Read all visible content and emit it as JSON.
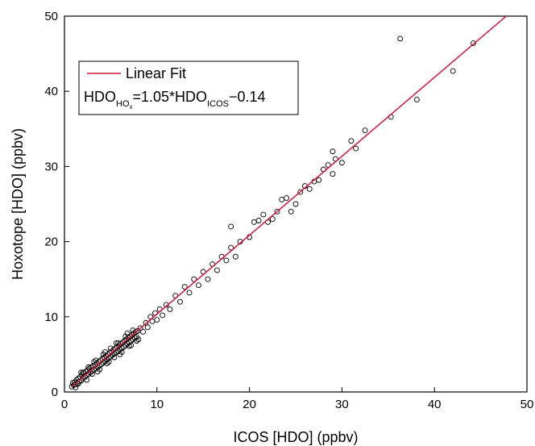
{
  "chart_data": {
    "type": "scatter",
    "xlabel": "ICOS [HDO] (ppbv)",
    "ylabel": "Hoxotope [HDO] (ppbv)",
    "xlim": [
      0,
      50
    ],
    "ylim": [
      0,
      50
    ],
    "xticks": [
      0,
      10,
      20,
      30,
      40,
      50
    ],
    "yticks": [
      0,
      10,
      20,
      30,
      40,
      50
    ],
    "legend": {
      "placement": "top-left",
      "entry": "Linear Fit",
      "equation": {
        "lhs": "HDO",
        "lhs_sub": "HO",
        "lhs_subsub": "x",
        "middle": "=1.05*HDO",
        "rhs_sub": "ICOS",
        "rhs": "−0.14"
      }
    },
    "fit": {
      "name": "Linear Fit",
      "slope": 1.05,
      "intercept": -0.14,
      "x_range": [
        0.8,
        47.7
      ],
      "color": "#d6163c"
    },
    "series": [
      {
        "marker": "open-circle",
        "points": [
          [
            0.8,
            0.7
          ],
          [
            0.9,
            1.2
          ],
          [
            1.0,
            0.9
          ],
          [
            1.1,
            1.3
          ],
          [
            1.2,
            1.0
          ],
          [
            1.3,
            1.6
          ],
          [
            1.4,
            1.2
          ],
          [
            1.5,
            1.8
          ],
          [
            1.6,
            1.4
          ],
          [
            1.7,
            2.0
          ],
          [
            1.8,
            1.5
          ],
          [
            1.9,
            2.3
          ],
          [
            2.0,
            1.8
          ],
          [
            2.1,
            2.5
          ],
          [
            2.2,
            2.0
          ],
          [
            2.3,
            2.7
          ],
          [
            2.4,
            2.2
          ],
          [
            2.5,
            2.9
          ],
          [
            2.6,
            2.4
          ],
          [
            2.7,
            3.1
          ],
          [
            2.8,
            2.6
          ],
          [
            2.9,
            3.3
          ],
          [
            3.0,
            2.8
          ],
          [
            3.1,
            3.4
          ],
          [
            3.2,
            3.0
          ],
          [
            3.3,
            3.6
          ],
          [
            3.4,
            3.1
          ],
          [
            3.5,
            3.8
          ],
          [
            3.6,
            3.3
          ],
          [
            3.7,
            4.0
          ],
          [
            3.8,
            3.5
          ],
          [
            3.9,
            4.2
          ],
          [
            4.0,
            3.7
          ],
          [
            4.1,
            4.4
          ],
          [
            4.2,
            3.9
          ],
          [
            4.3,
            4.6
          ],
          [
            4.4,
            4.1
          ],
          [
            4.5,
            4.8
          ],
          [
            4.6,
            4.3
          ],
          [
            4.7,
            5.0
          ],
          [
            4.8,
            4.5
          ],
          [
            4.9,
            5.2
          ],
          [
            5.0,
            4.7
          ],
          [
            5.1,
            5.4
          ],
          [
            5.2,
            4.9
          ],
          [
            5.3,
            5.6
          ],
          [
            5.4,
            5.1
          ],
          [
            5.5,
            5.8
          ],
          [
            5.6,
            5.3
          ],
          [
            5.7,
            6.0
          ],
          [
            5.8,
            5.4
          ],
          [
            5.9,
            6.2
          ],
          [
            6.0,
            5.6
          ],
          [
            6.1,
            6.4
          ],
          [
            6.2,
            5.8
          ],
          [
            6.3,
            6.6
          ],
          [
            6.4,
            6.0
          ],
          [
            6.5,
            6.8
          ],
          [
            6.6,
            6.2
          ],
          [
            6.7,
            7.0
          ],
          [
            6.8,
            6.4
          ],
          [
            6.9,
            7.2
          ],
          [
            7.0,
            6.6
          ],
          [
            7.1,
            7.4
          ],
          [
            7.2,
            6.8
          ],
          [
            7.3,
            7.6
          ],
          [
            7.4,
            7.0
          ],
          [
            7.5,
            7.8
          ],
          [
            7.6,
            7.2
          ],
          [
            7.7,
            8.0
          ],
          [
            7.8,
            7.3
          ],
          [
            7.9,
            8.1
          ],
          [
            1.5,
            1.1
          ],
          [
            2.0,
            2.6
          ],
          [
            2.6,
            3.3
          ],
          [
            3.0,
            2.4
          ],
          [
            3.4,
            4.2
          ],
          [
            3.8,
            3.0
          ],
          [
            4.2,
            5.0
          ],
          [
            4.6,
            3.8
          ],
          [
            5.0,
            5.8
          ],
          [
            5.4,
            4.6
          ],
          [
            5.8,
            6.5
          ],
          [
            6.2,
            5.3
          ],
          [
            6.6,
            7.4
          ],
          [
            7.0,
            6.1
          ],
          [
            7.4,
            8.2
          ],
          [
            7.8,
            6.8
          ],
          [
            1.2,
            0.6
          ],
          [
            1.8,
            2.6
          ],
          [
            2.4,
            1.6
          ],
          [
            3.2,
            4.0
          ],
          [
            3.6,
            2.7
          ],
          [
            4.4,
            5.3
          ],
          [
            4.8,
            4.0
          ],
          [
            5.6,
            6.5
          ],
          [
            6.0,
            5.0
          ],
          [
            6.8,
            7.8
          ],
          [
            7.2,
            6.2
          ],
          [
            8.0,
            7.0
          ],
          [
            8.2,
            8.5
          ],
          [
            8.5,
            8.0
          ],
          [
            8.8,
            9.2
          ],
          [
            9.0,
            8.6
          ],
          [
            9.3,
            10.0
          ],
          [
            9.5,
            9.4
          ],
          [
            9.8,
            10.5
          ],
          [
            10.0,
            9.6
          ],
          [
            10.3,
            11.0
          ],
          [
            10.6,
            10.2
          ],
          [
            11.0,
            11.6
          ],
          [
            11.4,
            11.0
          ],
          [
            12.0,
            12.8
          ],
          [
            12.5,
            12.0
          ],
          [
            13.0,
            14.0
          ],
          [
            13.5,
            13.2
          ],
          [
            14.0,
            15.0
          ],
          [
            14.5,
            14.2
          ],
          [
            15.0,
            16.0
          ],
          [
            15.5,
            15.0
          ],
          [
            16.0,
            17.0
          ],
          [
            16.5,
            16.2
          ],
          [
            17.0,
            18.0
          ],
          [
            17.5,
            17.5
          ],
          [
            18.0,
            19.2
          ],
          [
            18.5,
            18.0
          ],
          [
            18.0,
            22.0
          ],
          [
            19.0,
            20.0
          ],
          [
            20.0,
            20.6
          ],
          [
            20.5,
            22.6
          ],
          [
            21.0,
            22.8
          ],
          [
            21.5,
            23.6
          ],
          [
            22.0,
            22.6
          ],
          [
            22.5,
            23.0
          ],
          [
            23.0,
            24.0
          ],
          [
            23.5,
            25.6
          ],
          [
            24.0,
            25.8
          ],
          [
            24.5,
            24.0
          ],
          [
            25.0,
            25.0
          ],
          [
            25.5,
            26.6
          ],
          [
            26.0,
            27.4
          ],
          [
            26.5,
            27.0
          ],
          [
            27.0,
            28.0
          ],
          [
            27.5,
            28.2
          ],
          [
            28.0,
            29.6
          ],
          [
            28.5,
            30.2
          ],
          [
            29.0,
            32.0
          ],
          [
            29.3,
            31.0
          ],
          [
            29.0,
            29.0
          ],
          [
            30.0,
            30.5
          ],
          [
            31.0,
            33.4
          ],
          [
            31.5,
            32.4
          ],
          [
            32.5,
            34.8
          ],
          [
            35.3,
            36.6
          ],
          [
            36.3,
            47.0
          ],
          [
            38.1,
            38.9
          ],
          [
            42.0,
            42.7
          ],
          [
            44.2,
            46.4
          ]
        ]
      }
    ]
  }
}
